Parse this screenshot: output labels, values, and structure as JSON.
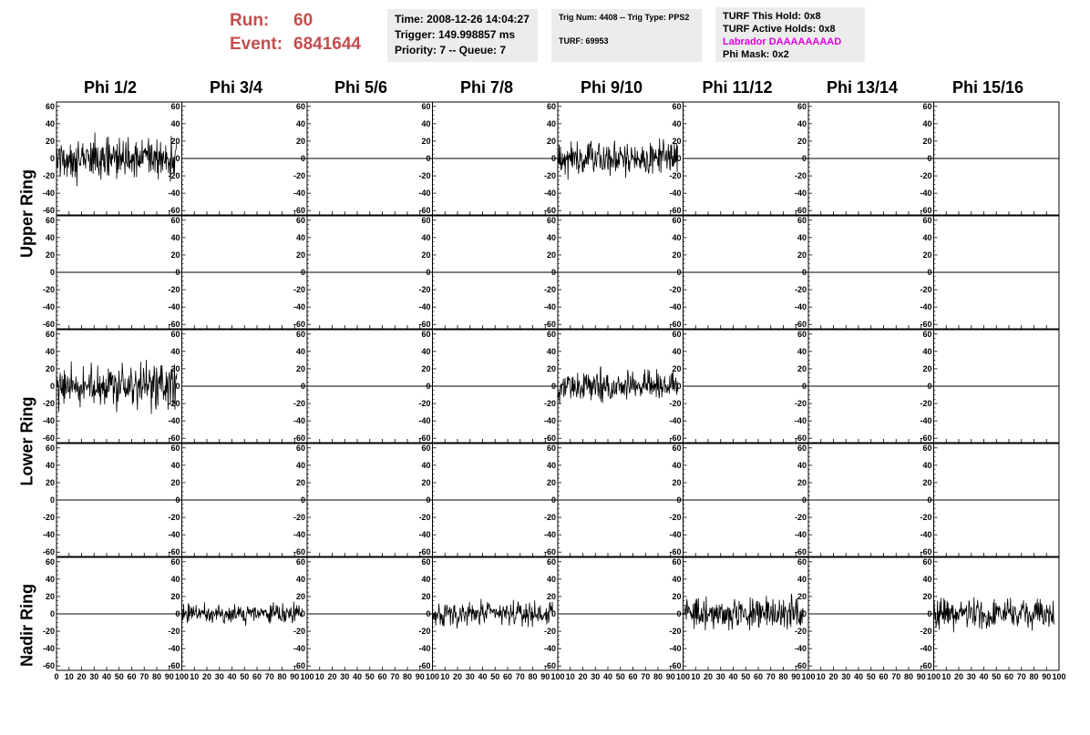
{
  "header": {
    "run_label": "Run:",
    "run_value": "60",
    "event_label": "Event:",
    "event_value": "6841644",
    "time": "Time: 2008-12-26 14:04:27",
    "trigger": "Trigger: 149.998857 ms",
    "priority": "Priority: 7 -- Queue: 7",
    "trig_num": "Trig Num: 4408 -- Trig Type: PPS2",
    "turf": "TURF: 69953",
    "turf_hold": "TURF This Hold: 0x8",
    "turf_active": "TURF Active Holds: 0x8",
    "labrador": "Labrador DAAAAAAAAD",
    "phi_mask": "Phi Mask: 0x2"
  },
  "columns": [
    "Phi 1/2",
    "Phi 3/4",
    "Phi 5/6",
    "Phi 7/8",
    "Phi 9/10",
    "Phi 11/12",
    "Phi 13/14",
    "Phi 15/16"
  ],
  "ring_labels": [
    "Upper Ring",
    "Lower Ring",
    "Nadir Ring"
  ],
  "colors": {
    "run_text": "#c44e4e",
    "labrador": "#e000e0",
    "info_bg": "#ececec"
  },
  "chart_data": {
    "type": "line",
    "xlim": [
      0,
      100
    ],
    "ylim": [
      -65,
      65
    ],
    "x_ticks": [
      "0",
      "10",
      "20",
      "30",
      "40",
      "50",
      "60",
      "70",
      "80",
      "90",
      "100"
    ],
    "y_ticks": [
      "60",
      "40",
      "20",
      "0",
      "-20",
      "-40",
      "-60"
    ],
    "grid_rows": 5,
    "grid_cols": 8,
    "active_panels": [
      {
        "row": 0,
        "col": 0,
        "rms": 18
      },
      {
        "row": 0,
        "col": 4,
        "rms": 14
      },
      {
        "row": 2,
        "col": 0,
        "rms": 20
      },
      {
        "row": 2,
        "col": 4,
        "rms": 13
      },
      {
        "row": 4,
        "col": 1,
        "rms": 8
      },
      {
        "row": 4,
        "col": 3,
        "rms": 10
      },
      {
        "row": 4,
        "col": 5,
        "rms": 14
      },
      {
        "row": 4,
        "col": 7,
        "rms": 13
      }
    ]
  }
}
